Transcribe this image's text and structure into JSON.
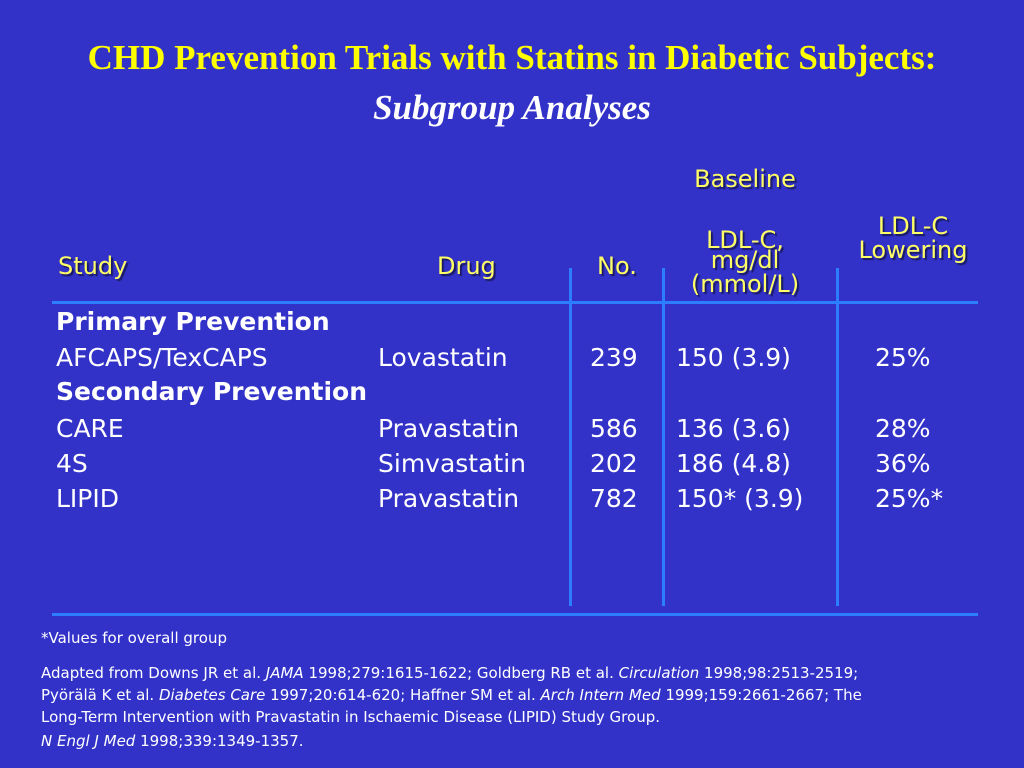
{
  "title": "CHD Prevention Trials with Statins in Diabetic Subjects:",
  "subtitle": "Subgroup Analyses",
  "headers": {
    "study": "Study",
    "drug": "Drug",
    "no": "No.",
    "baseline": "Baseline",
    "ldl_line1": "LDL-C,",
    "ldl_line2": "mg/dl",
    "ldl_line3": "(mmol/L)",
    "lowering_line1": "LDL-C",
    "lowering_line2": "Lowering"
  },
  "sections": {
    "primary": "Primary Prevention",
    "secondary": "Secondary Prevention"
  },
  "rows": [
    {
      "study": "AFCAPS/TexCAPS",
      "drug": "Lovastatin",
      "no": "239",
      "ldl": "150 (3.9)",
      "lowering": "25%"
    },
    {
      "study": "CARE",
      "drug": "Pravastatin",
      "no": "586",
      "ldl": "136 (3.6)",
      "lowering": "28%"
    },
    {
      "study": "4S",
      "drug": "Simvastatin",
      "no": "202",
      "ldl": "186 (4.8)",
      "lowering": "36%"
    },
    {
      "study": "LIPID",
      "drug": "Pravastatin",
      "no": "782",
      "ldl": "150* (3.9)",
      "lowering": "25%*"
    }
  ],
  "footnote": "*Values for overall group",
  "references": {
    "r1a": "Adapted from Downs JR et al. ",
    "r1b": "JAMA",
    "r1c": " 1998;279:1615-1622; Goldberg RB et al. ",
    "r1d": "Circulation",
    "r1e": " 1998;98:2513-2519;",
    "r2a": "Pyörälä K et al. ",
    "r2b": "Diabetes Care",
    "r2c": " 1997;20:614-620; Haffner SM et al. ",
    "r2d": "Arch Intern Med",
    "r2e": " 1999;159:2661-2667; The",
    "r3": "Long-Term Intervention with Pravastatin in Ischaemic  Disease (LIPID) Study Group.",
    "r4a": "N Engl J Med",
    "r4b": " 1998;339:1349-1357."
  },
  "colors": {
    "background": "#3232c8",
    "title": "#ffff00",
    "header": "#ffff66",
    "rule": "#2d7dff"
  }
}
